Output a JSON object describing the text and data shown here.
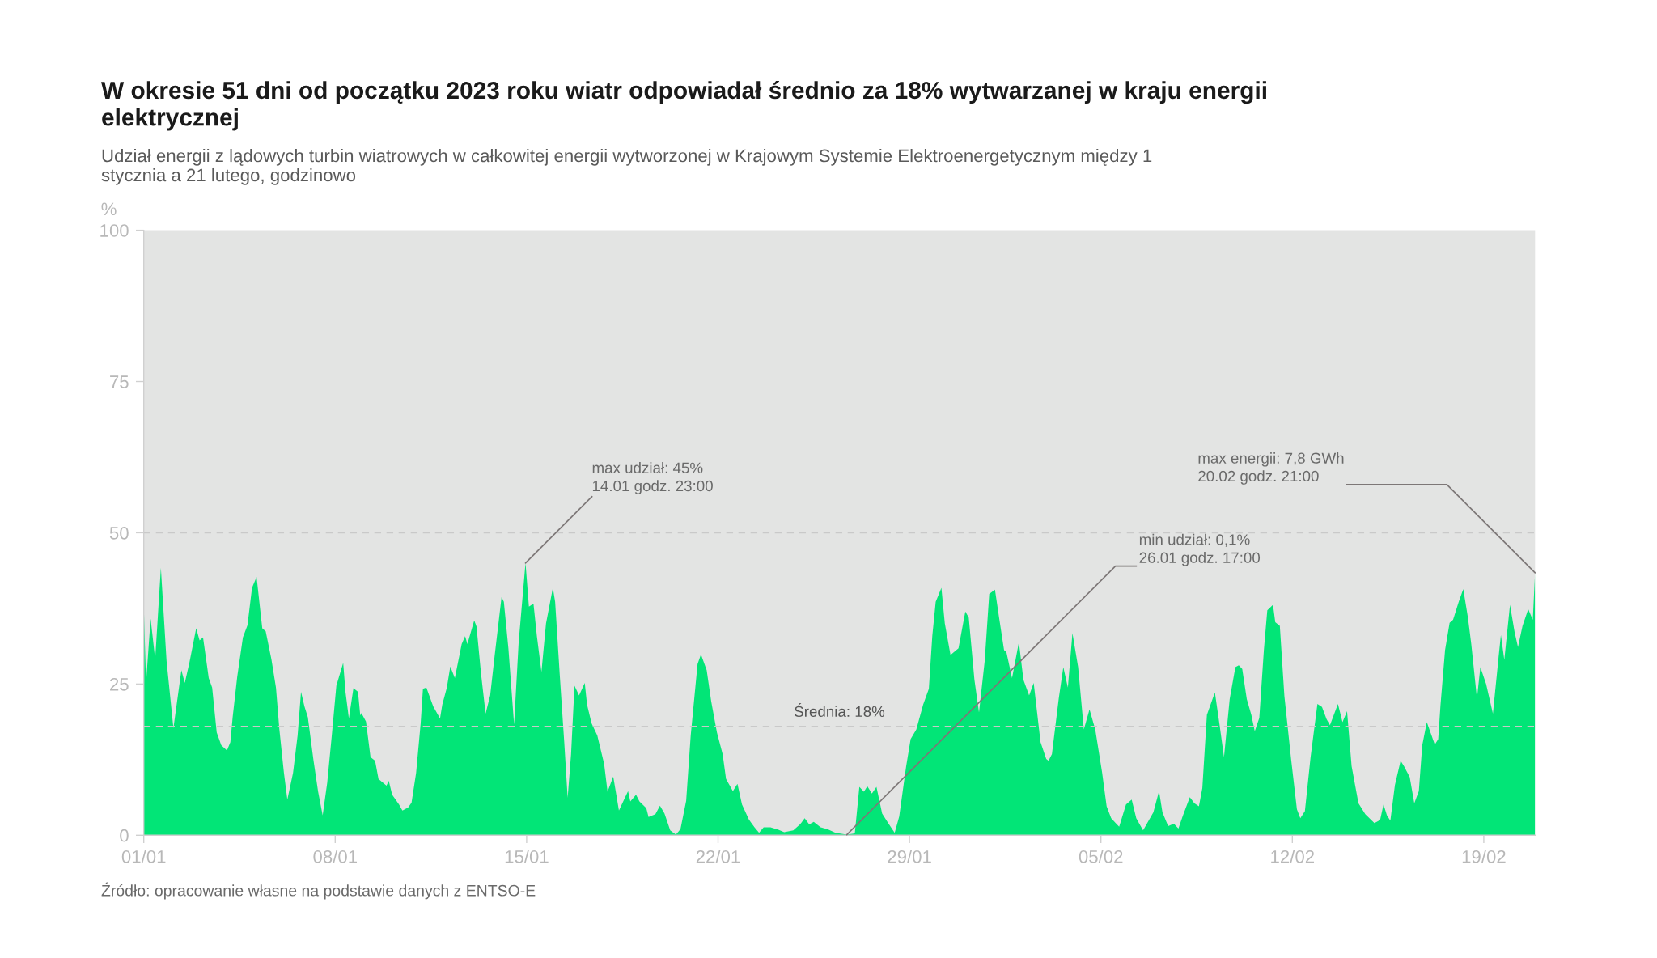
{
  "chart_data": {
    "type": "area",
    "title": "W okresie 51 dni od początku 2023 roku wiatr odpowiadał średnio za 18% wytwarzanej w kraju energii elektrycznej",
    "subtitle": "Udział energii z lądowych turbin wiatrowych w całkowitej energii wytworzonej w Krajowym Systemie Elektroenergetycznym między 1 stycznia a 21 lutego, godzinowo",
    "ylabel": "%",
    "xlim": [
      "2023-01-01T00:00",
      "2023-02-20T21:00"
    ],
    "xticks": [
      {
        "value": "2023-01-01",
        "label": "01/01"
      },
      {
        "value": "2023-01-08",
        "label": "08/01"
      },
      {
        "value": "2023-01-15",
        "label": "15/01"
      },
      {
        "value": "2023-01-22",
        "label": "22/01"
      },
      {
        "value": "2023-01-29",
        "label": "29/01"
      },
      {
        "value": "2023-02-05",
        "label": "05/02"
      },
      {
        "value": "2023-02-12",
        "label": "12/02"
      },
      {
        "value": "2023-02-19",
        "label": "19/02"
      }
    ],
    "ylim": [
      0,
      100
    ],
    "yticks": [
      0,
      25,
      50,
      75,
      100
    ],
    "ref_lines": [
      {
        "axis": "y",
        "value": 50,
        "label": null,
        "color": "#c9c9c9",
        "line_style": "dashed"
      },
      {
        "axis": "y",
        "value": 18,
        "label": "Średnia: 18%",
        "color": "#c9c9c9",
        "line_style": "dashed"
      }
    ],
    "annotations": [
      {
        "text": "max udział: 45%\n14.01 godz. 23:00",
        "x": "2023-01-14T23:00",
        "y": 45
      },
      {
        "text": "min udział: 0,1%\n26.01 godz. 17:00",
        "x": "2023-01-26T17:00",
        "y": 0.1
      },
      {
        "text": "max energii: 7,8 GWh\n20.02 godz. 21:00",
        "x": "2023-02-20T21:00",
        "y": 43.4
      },
      "Źródło: opracowanie własne na podstawie danych z ENTSO-E"
    ],
    "x": [
      "2023-01-01T00:00",
      "2023-01-01T02:00",
      "2023-01-01T06:00",
      "2023-01-01T10:00",
      "2023-01-01T15:00",
      "2023-01-01T20:00",
      "2023-01-02T02:00",
      "2023-01-02T09:00",
      "2023-01-02T12:00",
      "2023-01-02T16:00",
      "2023-01-02T22:00",
      "2023-01-03T01:00",
      "2023-01-03T04:00",
      "2023-01-03T09:00",
      "2023-01-03T12:00",
      "2023-01-03T16:00",
      "2023-01-03T20:00",
      "2023-01-04T01:00",
      "2023-01-04T04:00",
      "2023-01-04T06:00",
      "2023-01-04T10:00",
      "2023-01-04T15:00",
      "2023-01-04T19:00",
      "2023-01-04T23:00",
      "2023-01-05T03:00",
      "2023-01-05T08:00",
      "2023-01-05T11:00",
      "2023-01-05T16:00",
      "2023-01-05T20:00",
      "2023-01-05T23:00",
      "2023-01-06T03:00",
      "2023-01-06T06:00",
      "2023-01-06T11:00",
      "2023-01-06T15:00",
      "2023-01-06T18:00",
      "2023-01-06T21:00",
      "2023-01-07T00:00",
      "2023-01-07T05:00",
      "2023-01-07T09:00",
      "2023-01-07T13:00",
      "2023-01-07T17:00",
      "2023-01-07T21:00",
      "2023-01-08T01:00",
      "2023-01-08T07:00",
      "2023-01-08T09:00",
      "2023-01-08T12:00",
      "2023-01-08T16:00",
      "2023-01-08T20:00",
      "2023-01-08T22:00",
      "2023-01-08T23:00",
      "2023-01-09T03:00",
      "2023-01-09T07:00",
      "2023-01-09T11:00",
      "2023-01-09T14:00",
      "2023-01-09T21:00",
      "2023-01-09T23:00",
      "2023-01-10T02:00",
      "2023-01-10T08:00",
      "2023-01-10T11:00",
      "2023-01-10T16:00",
      "2023-01-10T19:00",
      "2023-01-10T23:00",
      "2023-01-11T03:00",
      "2023-01-11T05:00",
      "2023-01-11T08:00",
      "2023-01-11T14:00",
      "2023-01-11T20:00",
      "2023-01-11T22:00",
      "2023-01-12T02:00",
      "2023-01-12T05:00",
      "2023-01-12T09:00",
      "2023-01-12T15:00",
      "2023-01-12T18:00",
      "2023-01-12T20:00",
      "2023-01-13T02:00",
      "2023-01-13T04:00",
      "2023-01-13T08:00",
      "2023-01-13T12:00",
      "2023-01-13T16:00",
      "2023-01-13T20:00",
      "2023-01-14T02:00",
      "2023-01-14T04:00",
      "2023-01-14T08:00",
      "2023-01-14T13:00",
      "2023-01-14T17:00",
      "2023-01-14T23:00",
      "2023-01-15T02:00",
      "2023-01-15T06:00",
      "2023-01-15T09:00",
      "2023-01-15T13:00",
      "2023-01-15T17:00",
      "2023-01-15T23:00",
      "2023-01-16T01:00",
      "2023-01-16T05:00",
      "2023-01-16T09:00",
      "2023-01-16T12:00",
      "2023-01-16T15:00",
      "2023-01-16T18:00",
      "2023-01-16T22:00",
      "2023-01-17T03:00",
      "2023-01-17T05:00",
      "2023-01-17T09:00",
      "2023-01-17T14:00",
      "2023-01-17T20:00",
      "2023-01-17T23:00",
      "2023-01-18T04:00",
      "2023-01-18T09:00",
      "2023-01-18T17:00",
      "2023-01-18T19:00",
      "2023-01-19T00:00",
      "2023-01-19T03:00",
      "2023-01-19T09:00",
      "2023-01-19T11:00",
      "2023-01-19T17:00",
      "2023-01-19T21:00",
      "2023-01-20T01:00",
      "2023-01-20T06:00",
      "2023-01-20T11:00",
      "2023-01-20T15:00",
      "2023-01-20T20:00",
      "2023-01-21T00:00",
      "2023-01-21T06:00",
      "2023-01-21T09:00",
      "2023-01-21T14:00",
      "2023-01-21T18:00",
      "2023-01-21T23:00",
      "2023-01-22T04:00",
      "2023-01-22T07:00",
      "2023-01-22T13:00",
      "2023-01-22T17:00",
      "2023-01-22T21:00",
      "2023-01-23T03:00",
      "2023-01-23T08:00",
      "2023-01-23T12:00",
      "2023-01-23T16:00",
      "2023-01-23T22:00",
      "2023-01-24T05:00",
      "2023-01-24T10:00",
      "2023-01-24T18:00",
      "2023-01-25T00:00",
      "2023-01-25T04:00",
      "2023-01-25T08:00",
      "2023-01-25T12:00",
      "2023-01-25T18:00",
      "2023-01-26T00:00",
      "2023-01-26T07:00",
      "2023-01-26T17:00",
      "2023-01-27T00:00",
      "2023-01-27T04:00",
      "2023-01-27T08:00",
      "2023-01-27T11:00",
      "2023-01-27T15:00",
      "2023-01-27T19:00",
      "2023-01-28T00:00",
      "2023-01-28T06:00",
      "2023-01-28T11:00",
      "2023-01-28T15:00",
      "2023-01-28T21:00",
      "2023-01-29T01:00",
      "2023-01-29T06:00",
      "2023-01-29T12:00",
      "2023-01-29T17:00",
      "2023-01-29T20:00",
      "2023-01-29T23:00",
      "2023-01-30T04:00",
      "2023-01-30T07:00",
      "2023-01-30T12:00",
      "2023-01-30T19:00",
      "2023-01-31T01:00",
      "2023-01-31T04:00",
      "2023-01-31T09:00",
      "2023-01-31T13:00",
      "2023-01-31T18:00",
      "2023-01-31T22:00",
      "2023-02-01T03:00",
      "2023-02-01T07:00",
      "2023-02-01T11:00",
      "2023-02-01T13:00",
      "2023-02-01T18:00",
      "2023-02-02T00:00",
      "2023-02-02T04:00",
      "2023-02-02T09:00",
      "2023-02-02T13:00",
      "2023-02-02T19:00",
      "2023-02-03T00:00",
      "2023-02-03T02:00",
      "2023-02-03T05:00",
      "2023-02-03T11:00",
      "2023-02-03T15:00",
      "2023-02-03T19:00",
      "2023-02-03T23:00",
      "2023-02-04T04:00",
      "2023-02-04T09:00",
      "2023-02-04T14:00",
      "2023-02-04T19:00",
      "2023-02-05T01:00",
      "2023-02-05T05:00",
      "2023-02-05T09:00",
      "2023-02-05T16:00",
      "2023-02-05T22:00",
      "2023-02-06T03:00",
      "2023-02-06T07:00",
      "2023-02-06T13:00",
      "2023-02-06T22:00",
      "2023-02-07T03:00",
      "2023-02-07T06:00",
      "2023-02-07T11:00",
      "2023-02-07T16:00",
      "2023-02-07T20:00",
      "2023-02-08T00:00",
      "2023-02-08T06:00",
      "2023-02-08T10:00",
      "2023-02-08T14:00",
      "2023-02-08T17:00",
      "2023-02-08T21:00",
      "2023-02-09T04:00",
      "2023-02-09T08:00",
      "2023-02-09T12:00",
      "2023-02-09T17:00",
      "2023-02-09T22:00",
      "2023-02-10T01:00",
      "2023-02-10T04:00",
      "2023-02-10T08:00",
      "2023-02-10T12:00",
      "2023-02-10T15:00",
      "2023-02-10T19:00",
      "2023-02-10T23:00",
      "2023-02-11T02:00",
      "2023-02-11T07:00",
      "2023-02-11T09:00",
      "2023-02-11T13:00",
      "2023-02-11T17:00",
      "2023-02-11T23:00",
      "2023-02-12T04:00",
      "2023-02-12T07:00",
      "2023-02-12T11:00",
      "2023-02-12T16:00",
      "2023-02-12T22:00",
      "2023-02-13T02:00",
      "2023-02-13T06:00",
      "2023-02-13T09:00",
      "2023-02-13T16:00",
      "2023-02-13T20:00",
      "2023-02-14T00:00",
      "2023-02-14T04:00",
      "2023-02-14T10:00",
      "2023-02-14T16:00",
      "2023-02-15T00:00",
      "2023-02-15T05:00",
      "2023-02-15T08:00",
      "2023-02-15T11:00",
      "2023-02-15T14:00",
      "2023-02-15T18:00",
      "2023-02-15T23:00",
      "2023-02-16T02:00",
      "2023-02-16T07:00",
      "2023-02-16T11:00",
      "2023-02-16T15:00",
      "2023-02-16T18:00",
      "2023-02-16T22:00",
      "2023-02-17T05:00",
      "2023-02-17T08:00",
      "2023-02-17T10:00",
      "2023-02-17T14:00",
      "2023-02-17T18:00",
      "2023-02-17T21:00",
      "2023-02-18T02:00",
      "2023-02-18T06:00",
      "2023-02-18T10:00",
      "2023-02-18T13:00",
      "2023-02-18T18:00",
      "2023-02-18T21:00",
      "2023-02-19T02:00",
      "2023-02-19T08:00",
      "2023-02-19T13:00",
      "2023-02-19T15:00",
      "2023-02-19T18:00",
      "2023-02-19T23:00",
      "2023-02-20T03:00",
      "2023-02-20T06:00",
      "2023-02-20T10:00",
      "2023-02-20T15:00",
      "2023-02-20T19:00",
      "2023-02-20T21:00"
    ],
    "series": [
      {
        "color": "#02e577",
        "values": [
          38,
          25.2,
          35.8,
          29.1,
          44.2,
          28.8,
          17.7,
          27.3,
          25.2,
          28.5,
          34.2,
          32.2,
          32.7,
          26.0,
          24.4,
          17.0,
          14.9,
          14.0,
          15.4,
          19.5,
          26.2,
          32.7,
          34.7,
          40.9,
          42.7,
          34.2,
          33.7,
          29.1,
          24.4,
          17.5,
          10.3,
          5.9,
          10.3,
          16.5,
          23.7,
          21.3,
          19.5,
          12.3,
          7.2,
          3.3,
          8.7,
          16.5,
          24.7,
          28.5,
          23.7,
          19.3,
          24.3,
          23.7,
          19.8,
          20.2,
          18.8,
          12.9,
          12.3,
          9.3,
          8.2,
          9.0,
          6.7,
          5.1,
          4.1,
          4.6,
          5.4,
          10.3,
          18.5,
          24.2,
          24.4,
          21.3,
          19.3,
          21.6,
          24.4,
          27.9,
          26.0,
          31.6,
          32.9,
          31.6,
          35.5,
          34.5,
          26.7,
          20.1,
          23.1,
          29.8,
          39.4,
          38.6,
          30.9,
          18.3,
          31.9,
          45,
          37.8,
          38.3,
          32.9,
          27.0,
          35.0,
          40.9,
          38.6,
          26.7,
          15.4,
          6.2,
          13.4,
          24.7,
          23.1,
          25.2,
          21.6,
          18.5,
          16.5,
          11.8,
          7.2,
          9.7,
          4.1,
          7.3,
          5.6,
          6.7,
          5.6,
          4.5,
          3.0,
          3.5,
          4.9,
          3.6,
          0.8,
          0.1,
          1.0,
          5.7,
          16.5,
          28.3,
          29.9,
          27.3,
          22.1,
          17.0,
          13.4,
          9.3,
          7.3,
          8.5,
          5.1,
          2.6,
          1.3,
          0.4,
          1.3,
          1.3,
          0.9,
          0.5,
          0.8,
          1.8,
          2.8,
          1.8,
          2.2,
          1.3,
          1.0,
          0.4,
          0.1,
          0.3,
          8.0,
          7.2,
          8.1,
          6.9,
          8.0,
          3.6,
          1.8,
          0.4,
          3.1,
          11.3,
          15.9,
          17.5,
          21.6,
          24.2,
          32.9,
          38.6,
          40.9,
          35.0,
          29.8,
          30.9,
          37.0,
          36.0,
          25.7,
          20.3,
          28.8,
          39.9,
          40.6,
          35.5,
          30.6,
          30.3,
          26.0,
          31.9,
          25.7,
          23.1,
          25.2,
          15.4,
          12.6,
          12.3,
          13.4,
          22.6,
          27.8,
          24.4,
          33.4,
          27.8,
          17.5,
          20.8,
          17.5,
          10.4,
          4.8,
          2.8,
          1.4,
          5.1,
          5.9,
          2.8,
          0.8,
          3.8,
          7.3,
          3.8,
          1.5,
          1.9,
          1.1,
          3.3,
          6.3,
          5.3,
          4.8,
          7.8,
          19.9,
          23.6,
          18.4,
          12.9,
          22.5,
          27.8,
          28.1,
          27.5,
          22.5,
          19.9,
          17.2,
          19.4,
          30.6,
          37.2,
          38.1,
          35.2,
          34.6,
          23.0,
          12.4,
          4.3,
          2.8,
          4.0,
          12.9,
          21.7,
          21.2,
          19.2,
          18.2,
          21.7,
          18.7,
          20.5,
          11.4,
          5.3,
          3.5,
          2.0,
          2.5,
          5.1,
          3.3,
          2.4,
          8.3,
          12.3,
          11.4,
          9.6,
          5.3,
          7.3,
          14.9,
          18.7,
          15.0,
          15.9,
          21.5,
          30.6,
          35.1,
          35.6,
          38.6,
          40.7,
          36.1,
          31.6,
          22.6,
          27.8,
          25.0,
          20.1,
          29.5,
          33.1,
          29.0,
          38.1,
          33.6,
          31.1,
          34.6,
          37.4,
          35.6,
          43.4
        ]
      }
    ]
  }
}
